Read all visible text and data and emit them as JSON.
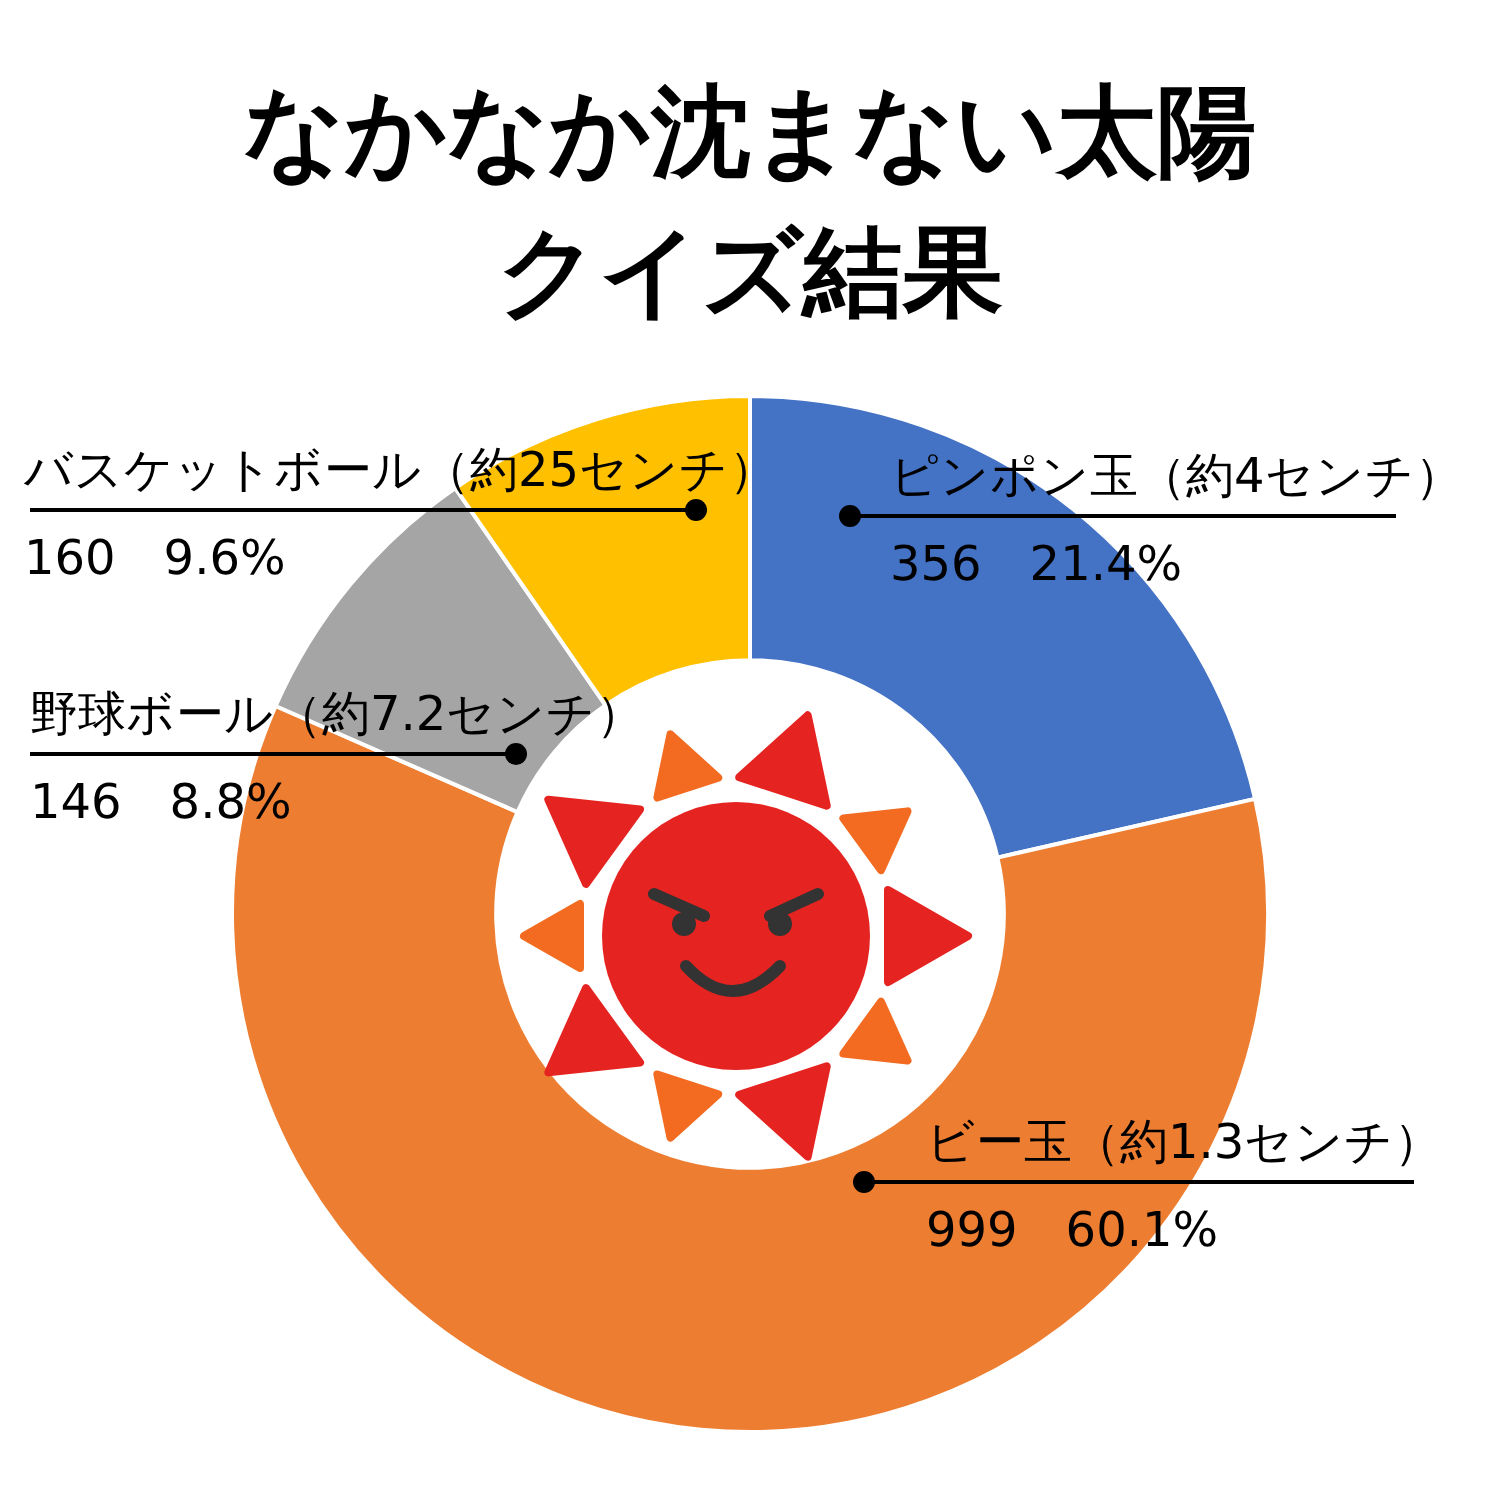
{
  "chart_data": {
    "type": "donut",
    "title": "なかなか沈まない太陽",
    "subtitle": "クイズ結果",
    "categories": [
      "ピンポン玉（約4センチ）",
      "ビー玉（約1.3センチ）",
      "野球ボール（約7.2センチ）",
      "バスケットボール（約25センチ）"
    ],
    "values": [
      356,
      999,
      146,
      160
    ],
    "colors": [
      "#4472c4",
      "#ed7d31",
      "#a5a5a5",
      "#ffc000"
    ],
    "value_labels": [
      "356　21.4%",
      "999　60.1%",
      "146　8.8%",
      "160　9.6%"
    ]
  }
}
